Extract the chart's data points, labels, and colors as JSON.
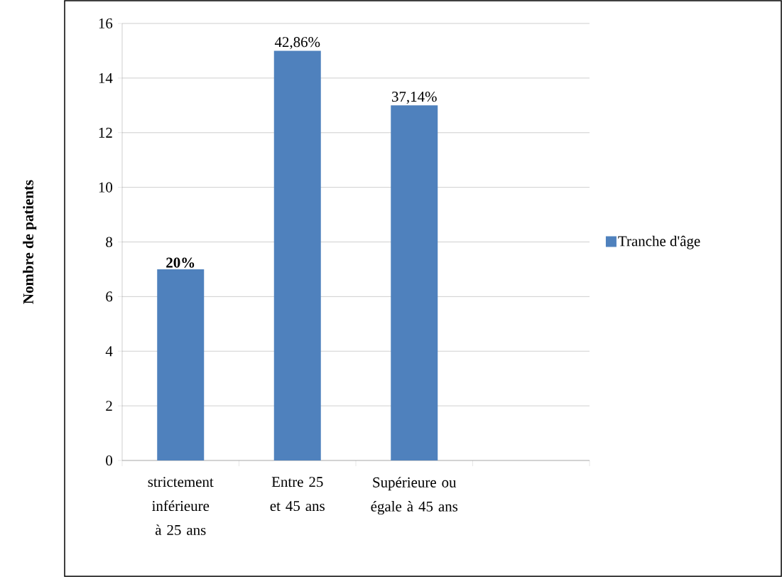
{
  "chart_data": {
    "type": "bar",
    "ylabel": "Nombre de patients",
    "categories": [
      "strictement inférieure à 25 ans",
      "Entre 25 et 45 ans",
      "Supérieure ou égale à 45 ans",
      null
    ],
    "series": [
      {
        "name": "Tranche d'âge",
        "color": "#4f81bd",
        "values": [
          7,
          15,
          13,
          null
        ]
      }
    ],
    "annotations": [
      {
        "text": "**20%**",
        "x": "strictement inférieure à 25 ans",
        "y": 7
      },
      {
        "text": "42,86%",
        "x": "Entre 25 et 45 ans",
        "y": 15
      },
      {
        "text": "37,14%",
        "x": "Supérieure ou égale à 45 ans",
        "y": 13
      }
    ],
    "ylim": [
      0,
      16
    ],
    "yticks": [
      0,
      2,
      4,
      6,
      8,
      10,
      12,
      14,
      16
    ],
    "grid": "y",
    "legend": "right"
  }
}
